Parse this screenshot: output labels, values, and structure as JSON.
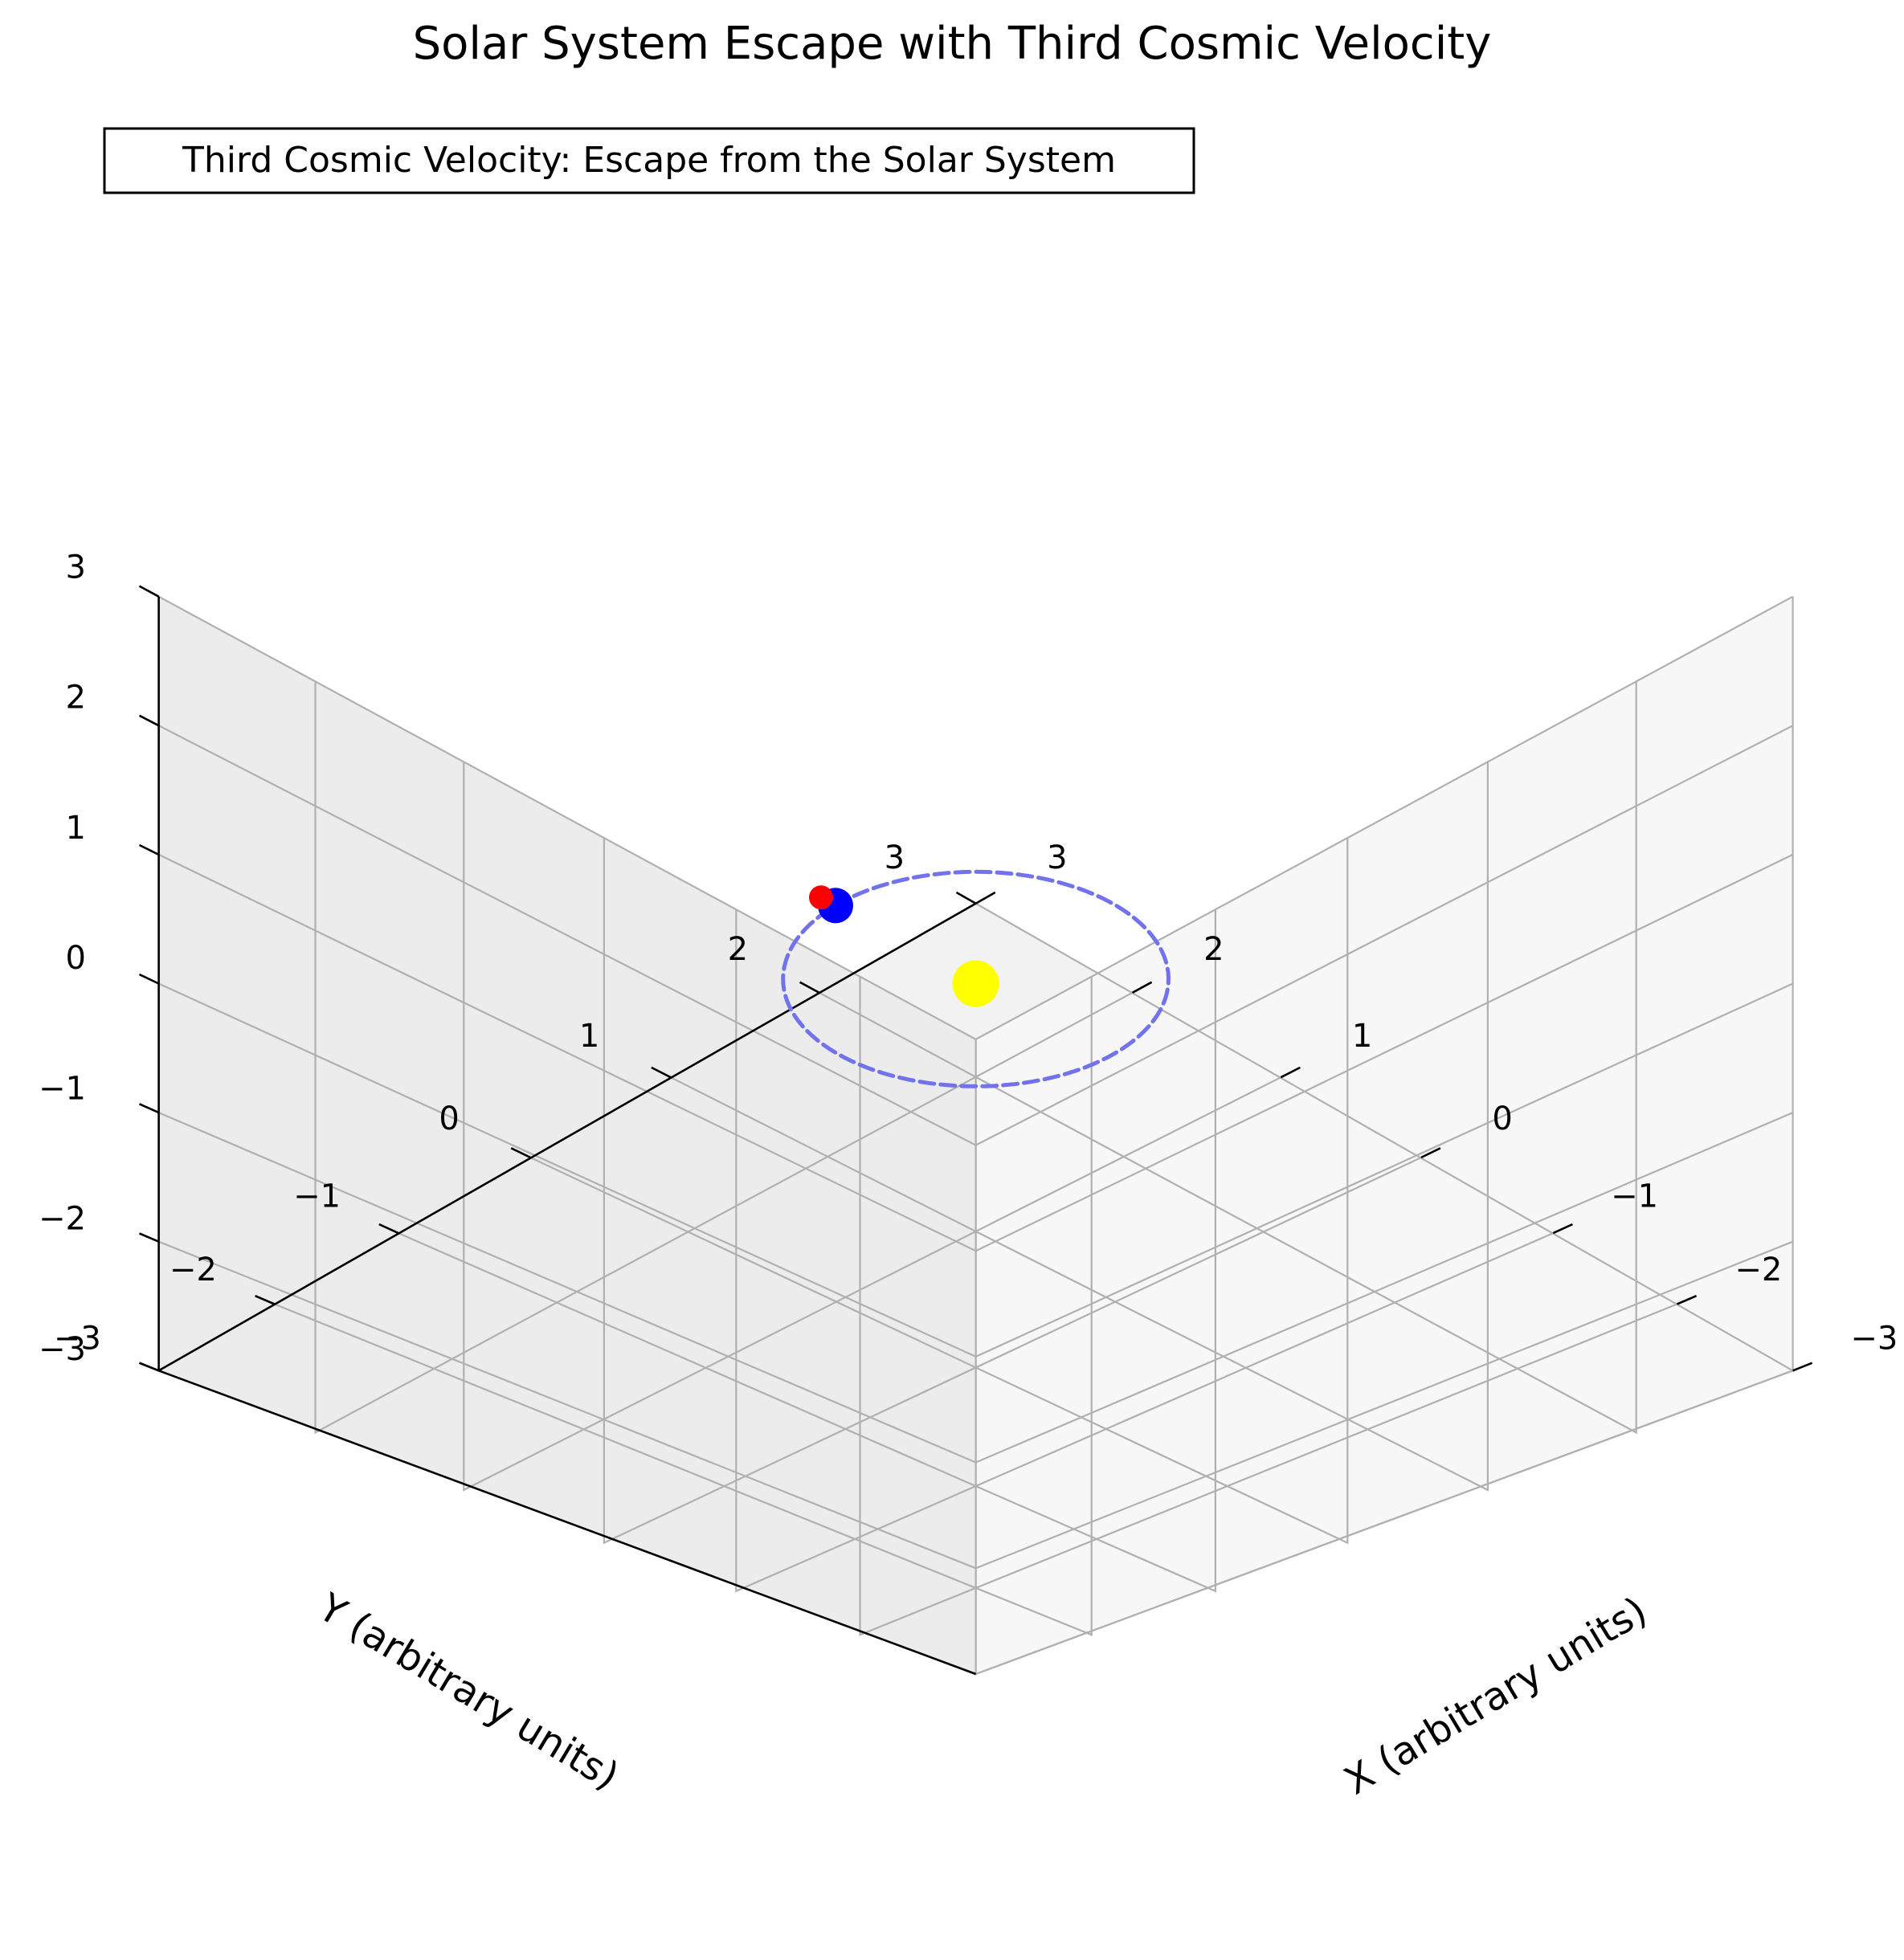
{
  "chart_data": {
    "type": "scatter",
    "projection": "3d",
    "title": "Solar System Escape with Third Cosmic Velocity",
    "annotation": "Third Cosmic Velocity: Escape from the Solar System",
    "xlabel": "X (arbitrary units)",
    "ylabel": "Y (arbitrary units)",
    "zlabel": "",
    "xlim": [
      -3,
      3
    ],
    "ylim": [
      -3,
      3
    ],
    "zlim": [
      -3,
      3
    ],
    "xticks": [
      "−3",
      "−2",
      "−1",
      "0",
      "1",
      "2",
      "3"
    ],
    "yticks": [
      "−3",
      "−2",
      "−1",
      "0",
      "1",
      "2",
      "3"
    ],
    "zticks": [
      "−3",
      "−2",
      "−1",
      "0",
      "1",
      "2",
      "3"
    ],
    "grid": true,
    "series": [
      {
        "kind": "line",
        "style": "dashed",
        "color": "#7272ec",
        "shape": "circle",
        "center": [
          0,
          0,
          0
        ],
        "radius": 1
      },
      {
        "kind": "point",
        "color": "#ffff00",
        "x": 0,
        "y": 0,
        "z": 0
      },
      {
        "kind": "point",
        "color": "#0000ff",
        "x": 1,
        "y": 0,
        "z": 0
      },
      {
        "kind": "point",
        "color": "#ff0000",
        "x": 1.1,
        "y": 0,
        "z": 0
      }
    ]
  }
}
